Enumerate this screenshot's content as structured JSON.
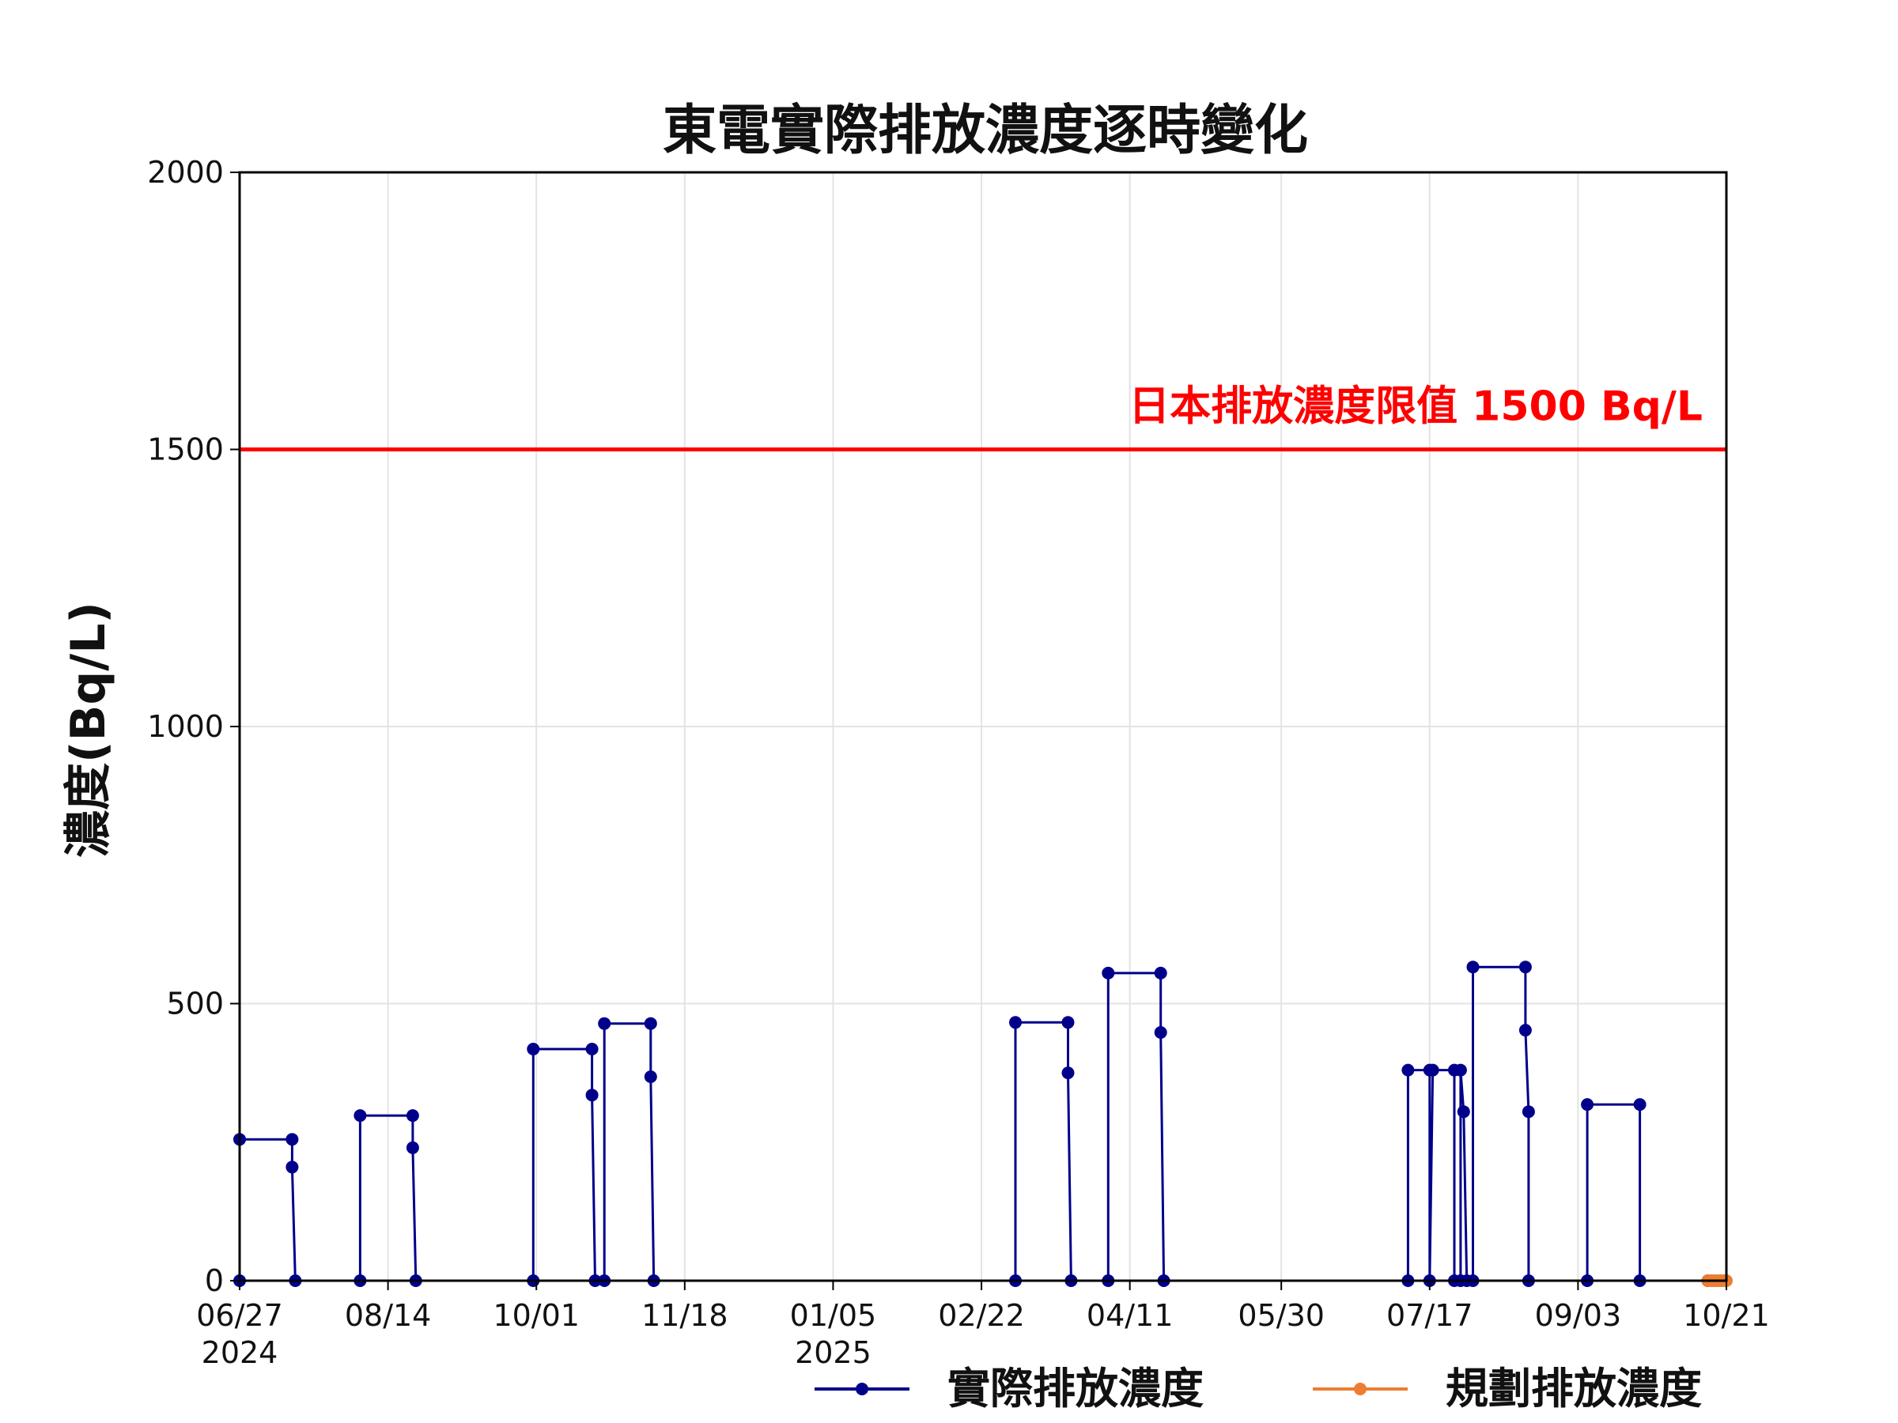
{
  "chart_data": {
    "type": "line",
    "title": "東電實際排放濃度逐時變化",
    "ylabel": "濃度(Bq/L)",
    "xlabel": "",
    "ylim": [
      0,
      2000
    ],
    "xlim": [
      "2024-06-27",
      "2025-10-21"
    ],
    "y_ticks": [
      0,
      500,
      1000,
      1500,
      2000
    ],
    "x_ticks": [
      {
        "date": "2024-06-27",
        "label": "06/27",
        "sublabel": "2024"
      },
      {
        "date": "2024-08-14",
        "label": "08/14",
        "sublabel": ""
      },
      {
        "date": "2024-10-01",
        "label": "10/01",
        "sublabel": ""
      },
      {
        "date": "2024-11-18",
        "label": "11/18",
        "sublabel": ""
      },
      {
        "date": "2025-01-05",
        "label": "01/05",
        "sublabel": "2025"
      },
      {
        "date": "2025-02-22",
        "label": "02/22",
        "sublabel": ""
      },
      {
        "date": "2025-04-11",
        "label": "04/11",
        "sublabel": ""
      },
      {
        "date": "2025-05-30",
        "label": "05/30",
        "sublabel": ""
      },
      {
        "date": "2025-07-17",
        "label": "07/17",
        "sublabel": ""
      },
      {
        "date": "2025-09-03",
        "label": "09/03",
        "sublabel": ""
      },
      {
        "date": "2025-10-21",
        "label": "10/21",
        "sublabel": ""
      }
    ],
    "grid": true,
    "legend_position": "bottom-right",
    "reference_line": {
      "y": 1500,
      "label": "日本排放濃度限值 1500 Bq/L",
      "color": "#ff0000"
    },
    "series": [
      {
        "name": "實際排放濃度",
        "color": "#00008b",
        "points": [
          [
            "2024-06-27",
            0
          ],
          [
            "2024-06-27",
            255
          ],
          [
            "2024-07-14",
            255
          ],
          [
            "2024-07-14",
            205
          ],
          [
            "2024-07-15",
            0
          ],
          [
            "2024-08-05",
            0
          ],
          [
            "2024-08-05",
            298
          ],
          [
            "2024-08-22",
            298
          ],
          [
            "2024-08-22",
            240
          ],
          [
            "2024-08-23",
            0
          ],
          [
            "2024-09-30",
            0
          ],
          [
            "2024-09-30",
            418
          ],
          [
            "2024-10-19",
            418
          ],
          [
            "2024-10-19",
            335
          ],
          [
            "2024-10-20",
            0
          ],
          [
            "2024-10-23",
            0
          ],
          [
            "2024-10-23",
            464
          ],
          [
            "2024-11-07",
            464
          ],
          [
            "2024-11-07",
            368
          ],
          [
            "2024-11-08",
            0
          ],
          [
            "2025-03-05",
            0
          ],
          [
            "2025-03-05",
            466
          ],
          [
            "2025-03-22",
            466
          ],
          [
            "2025-03-22",
            375
          ],
          [
            "2025-03-23",
            0
          ],
          [
            "2025-04-04",
            0
          ],
          [
            "2025-04-04",
            555
          ],
          [
            "2025-04-21",
            555
          ],
          [
            "2025-04-21",
            448
          ],
          [
            "2025-04-22",
            0
          ],
          [
            "2025-07-10",
            0
          ],
          [
            "2025-07-10",
            380
          ],
          [
            "2025-07-17",
            380
          ],
          [
            "2025-07-17",
            0
          ],
          [
            "2025-07-18",
            380
          ],
          [
            "2025-07-25",
            380
          ],
          [
            "2025-07-25",
            0
          ],
          [
            "2025-07-27",
            0
          ],
          [
            "2025-07-27",
            380
          ],
          [
            "2025-07-28",
            305
          ],
          [
            "2025-07-29",
            0
          ],
          [
            "2025-07-31",
            0
          ],
          [
            "2025-07-31",
            566
          ],
          [
            "2025-08-17",
            566
          ],
          [
            "2025-08-17",
            452
          ],
          [
            "2025-08-18",
            305
          ],
          [
            "2025-08-18",
            0
          ],
          [
            "2025-09-06",
            0
          ],
          [
            "2025-09-06",
            318
          ],
          [
            "2025-09-23",
            318
          ],
          [
            "2025-09-23",
            0
          ],
          [
            "2025-10-15",
            0
          ]
        ]
      },
      {
        "name": "規劃排放濃度",
        "color": "#ed7d31",
        "points": [
          [
            "2025-10-15",
            0
          ],
          [
            "2025-10-16",
            0
          ],
          [
            "2025-10-17",
            0
          ],
          [
            "2025-10-18",
            0
          ],
          [
            "2025-10-19",
            0
          ],
          [
            "2025-10-20",
            0
          ],
          [
            "2025-10-21",
            0
          ]
        ]
      }
    ]
  }
}
